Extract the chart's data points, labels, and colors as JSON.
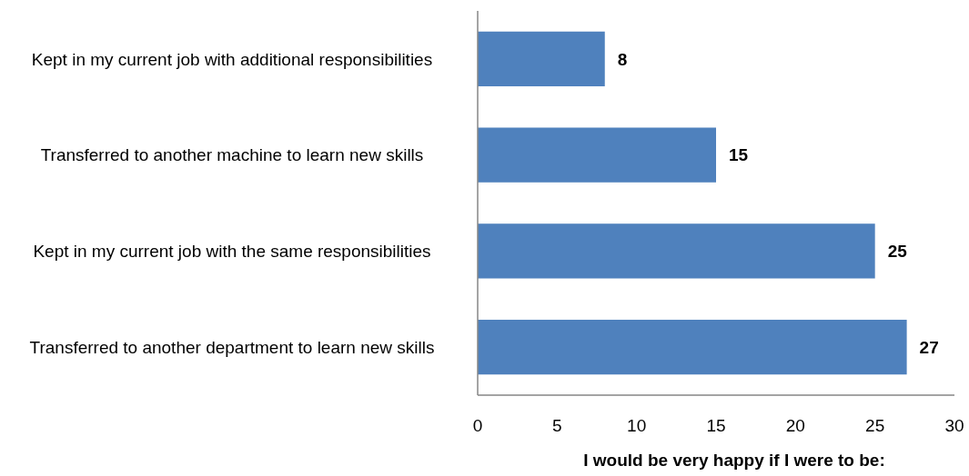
{
  "chart_data": {
    "type": "bar",
    "orientation": "horizontal",
    "xlabel": "I would be very happy if I were to be:",
    "categories": [
      "Kept in my current job with additional responsibilities",
      "Transferred to another machine to learn new skills",
      "Kept in my current job with the same responsibilities",
      "Transferred to another department to learn new skills"
    ],
    "values": [
      8,
      15,
      25,
      27
    ],
    "color": "#4f81bd",
    "data_labels": true,
    "xlim": [
      0,
      30
    ],
    "xticks": [
      0,
      5,
      10,
      15,
      20,
      25,
      30
    ],
    "grid": false
  }
}
